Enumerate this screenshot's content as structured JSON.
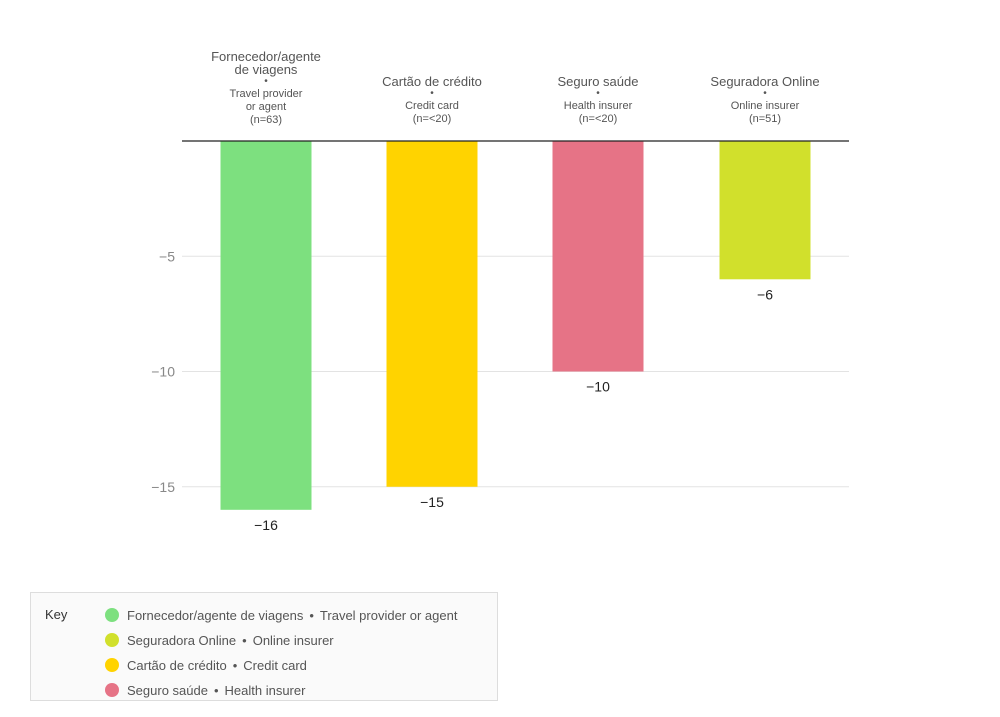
{
  "chart_data": {
    "type": "bar",
    "categories": [
      {
        "pt": "Fornecedor/agente de viagens",
        "pt_lines": [
          "Fornecedor/agente",
          "de viagens"
        ],
        "en_lines": [
          "Travel provider",
          "or agent",
          "(n=63)"
        ],
        "color": "#7de07f"
      },
      {
        "pt": "Cartão de crédito",
        "pt_lines": [
          "Cartão de crédito"
        ],
        "en_lines": [
          "Credit card",
          "(n=<20)"
        ],
        "color": "#ffd300"
      },
      {
        "pt": "Seguro saúde",
        "pt_lines": [
          "Seguro saúde"
        ],
        "en_lines": [
          "Health insurer",
          "(n=<20)"
        ],
        "color": "#e67386"
      },
      {
        "pt": "Seguradora Online",
        "pt_lines": [
          "Seguradora Online"
        ],
        "en_lines": [
          "Online insurer",
          "(n=51)"
        ],
        "color": "#d1e02c"
      }
    ],
    "values": [
      -16,
      -15,
      -10,
      -6
    ],
    "value_labels": [
      "−16",
      "−15",
      "−10",
      "−6"
    ],
    "y_ticks": [
      -5,
      -10,
      -15
    ],
    "y_tick_labels": [
      "−5",
      "−10",
      "−15"
    ],
    "ylim": [
      -16,
      0
    ],
    "grid": true,
    "legend_placement": "bottom-left"
  },
  "legend": {
    "title": "Key",
    "items": [
      {
        "pt": "Fornecedor/agente de viagens",
        "sep": "•",
        "en": "Travel provider or agent",
        "color": "#7de07f"
      },
      {
        "pt": "Seguradora Online",
        "sep": "•",
        "en": "Online insurer",
        "color": "#d1e02c"
      },
      {
        "pt": "Cartão de crédito",
        "sep": "•",
        "en": "Credit card",
        "color": "#ffd300"
      },
      {
        "pt": "Seguro saúde",
        "sep": "•",
        "en": "Health insurer",
        "color": "#e67386"
      }
    ]
  }
}
